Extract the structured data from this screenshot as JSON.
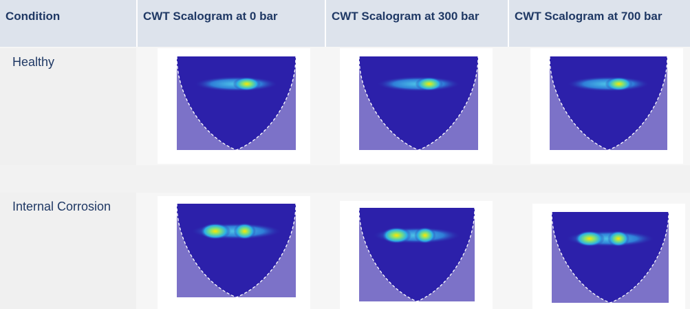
{
  "table": {
    "headers": [
      "Condition",
      "CWT Scalogram at 0 bar",
      "CWT Scalogram at 300 bar",
      "CWT Scalogram at 700 bar"
    ],
    "rows": [
      [
        "Healthy"
      ],
      [
        "Internal Corrosion"
      ]
    ]
  }
}
